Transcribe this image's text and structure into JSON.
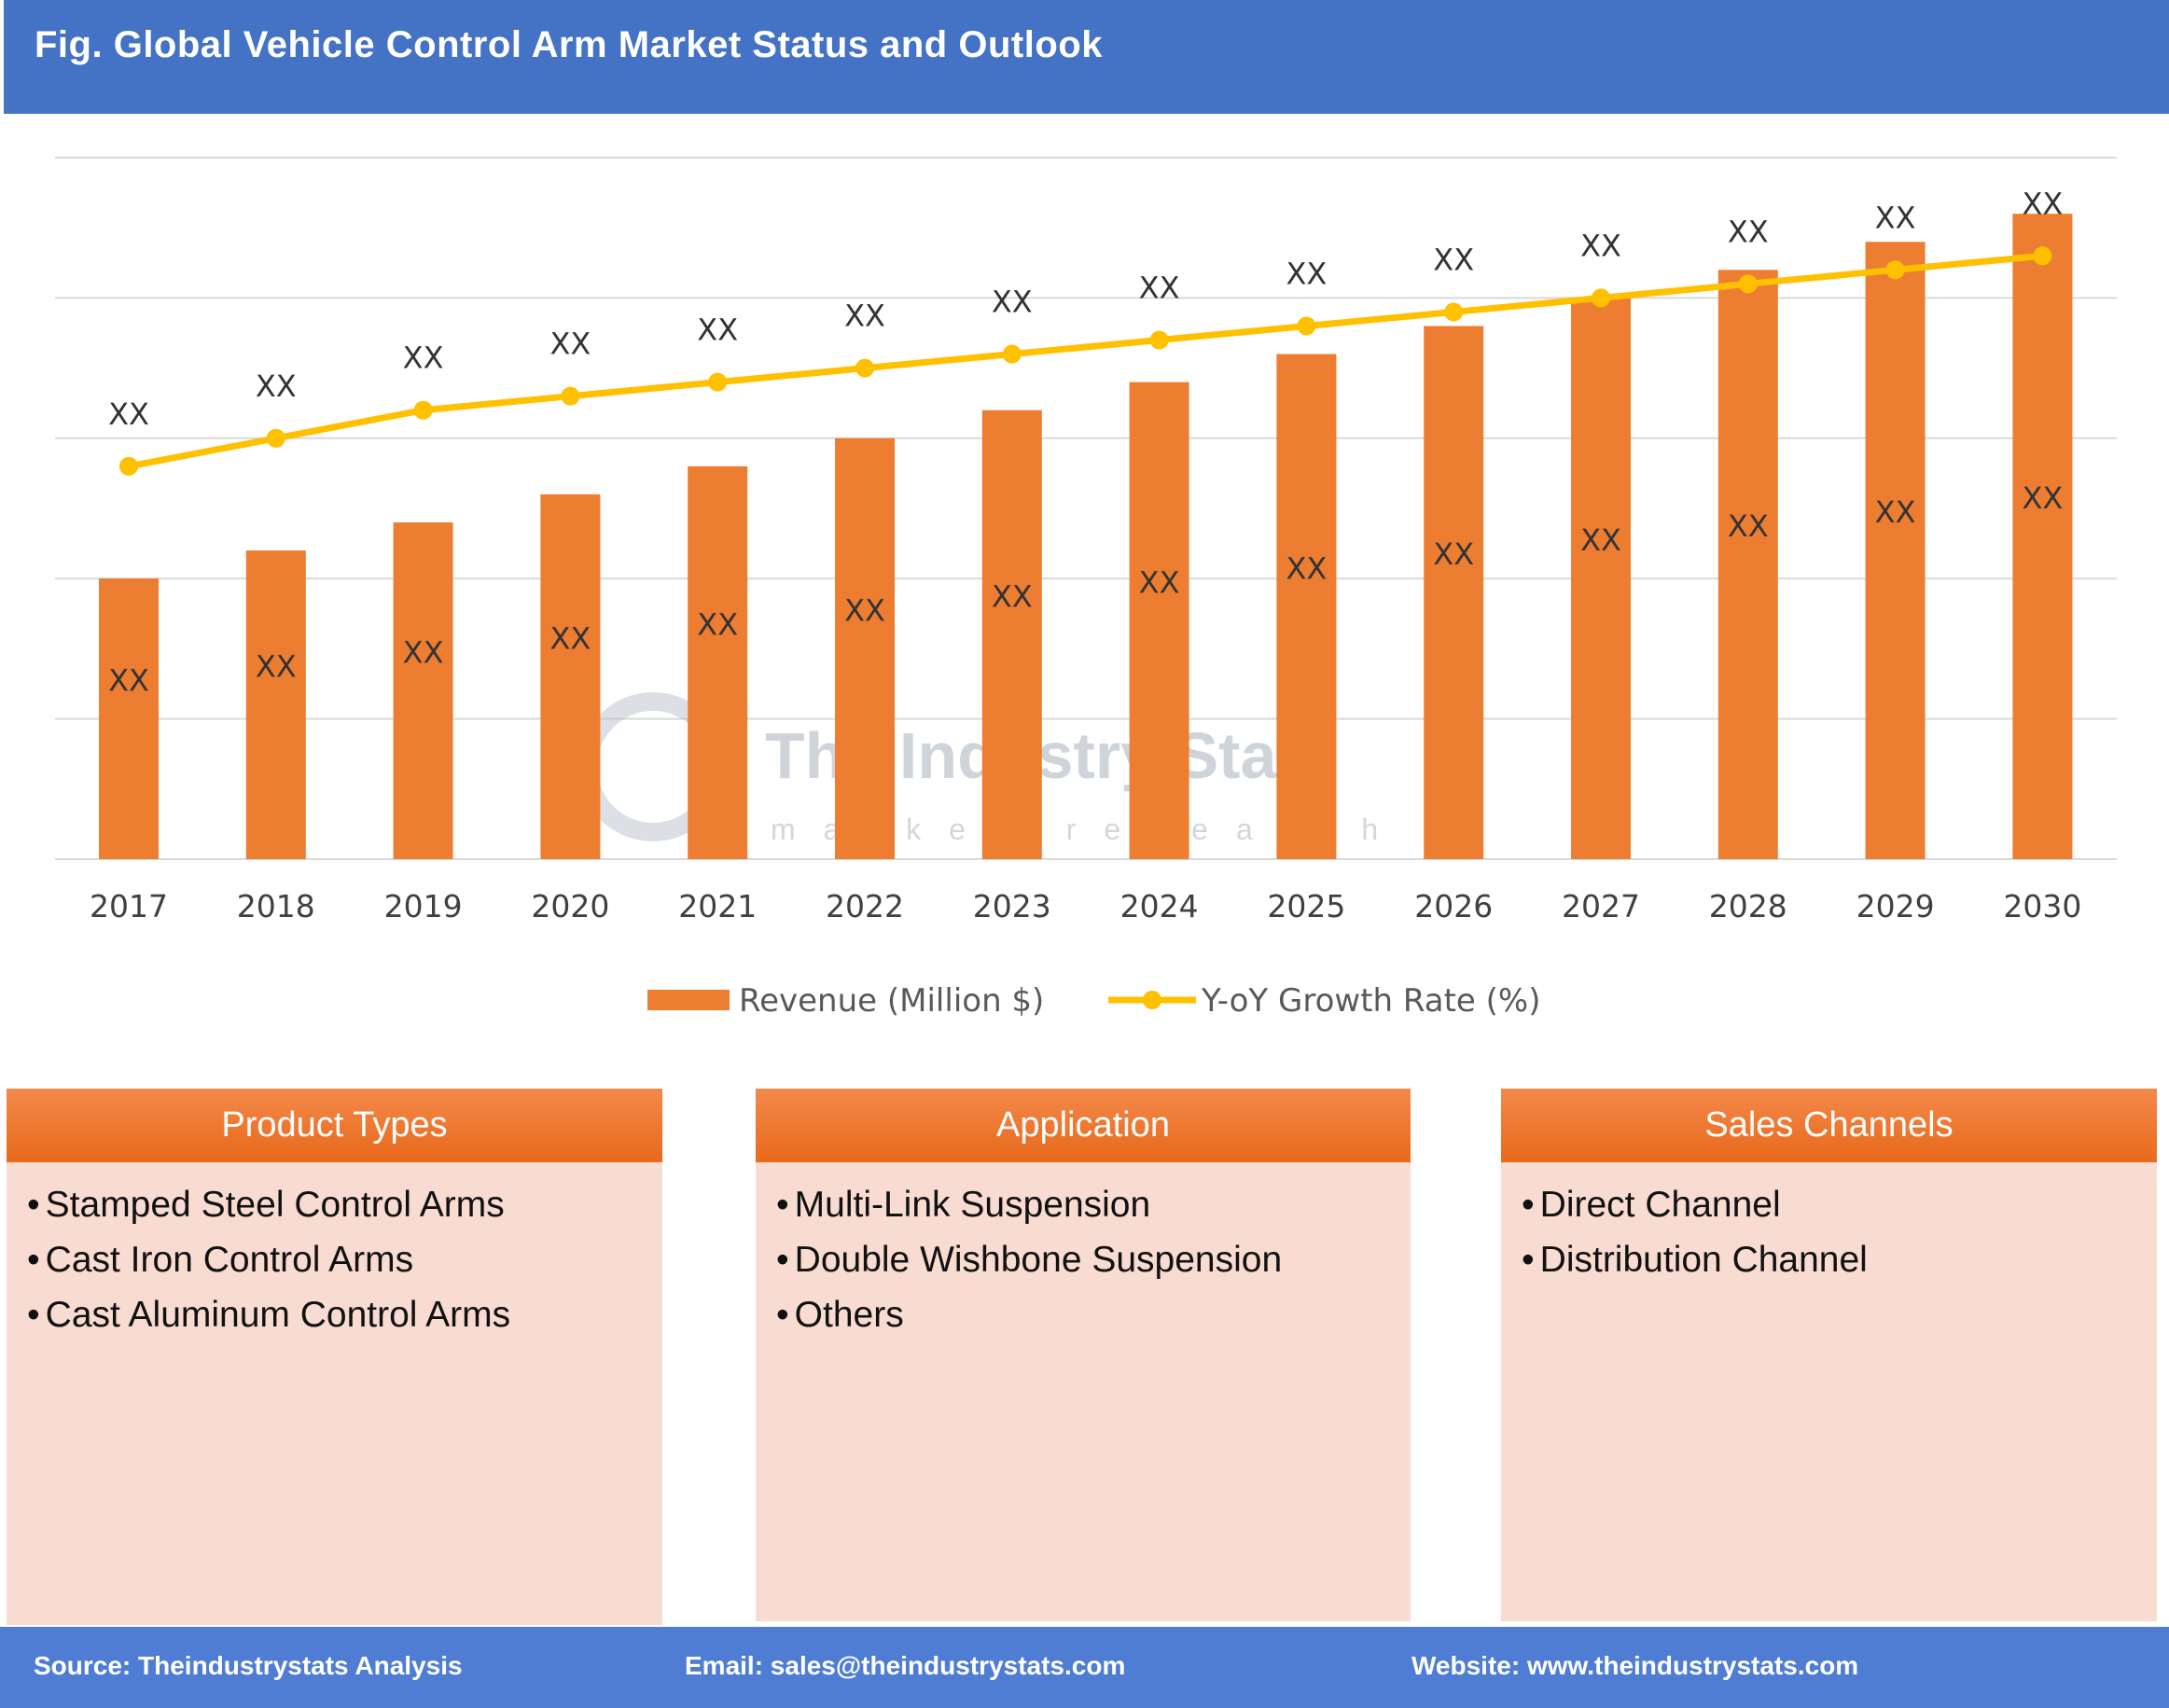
{
  "title": "Fig. Global Vehicle Control Arm Market Status and Outlook",
  "watermark": {
    "name": "The Industry Stats",
    "tagline": "market research"
  },
  "chart_data": {
    "type": "bar+line",
    "categories": [
      "2017",
      "2018",
      "2019",
      "2020",
      "2021",
      "2022",
      "2023",
      "2024",
      "2025",
      "2026",
      "2027",
      "2028",
      "2029",
      "2030"
    ],
    "series": [
      {
        "name": "Revenue (Million $)",
        "type": "bar",
        "color": "#ed7d31",
        "values": [
          2.0,
          2.2,
          2.4,
          2.6,
          2.8,
          3.0,
          3.2,
          3.4,
          3.6,
          3.8,
          4.0,
          4.2,
          4.4,
          4.6
        ],
        "labels": [
          "XX",
          "XX",
          "XX",
          "XX",
          "XX",
          "XX",
          "XX",
          "XX",
          "XX",
          "XX",
          "XX",
          "XX",
          "XX",
          "XX"
        ]
      },
      {
        "name": "Y-oY Growth Rate (%)",
        "type": "line",
        "color": "#ffc000",
        "values": [
          2.8,
          3.0,
          3.2,
          3.3,
          3.4,
          3.5,
          3.6,
          3.7,
          3.8,
          3.9,
          4.0,
          4.1,
          4.2,
          4.3
        ],
        "labels": [
          "XX",
          "XX",
          "XX",
          "XX",
          "XX",
          "XX",
          "XX",
          "XX",
          "XX",
          "XX",
          "XX",
          "XX",
          "XX",
          "XX"
        ]
      }
    ],
    "ylim": [
      0,
      5
    ],
    "grid": true,
    "y_tick_labels_shown": false,
    "legend": "bottom"
  },
  "boxes": [
    {
      "title": "Product Types",
      "items": [
        "Stamped Steel Control Arms",
        "Cast Iron Control Arms",
        "Cast Aluminum Control Arms"
      ]
    },
    {
      "title": "Application",
      "items": [
        "Multi-Link Suspension",
        "Double Wishbone Suspension",
        "Others"
      ]
    },
    {
      "title": "Sales Channels",
      "items": [
        "Direct Channel",
        "Distribution Channel"
      ]
    }
  ],
  "footer": {
    "source": "Source: Theindustrystats Analysis",
    "email": "Email: sales@theindustrystats.com",
    "website": "Website: www.theindustrystats.com"
  }
}
